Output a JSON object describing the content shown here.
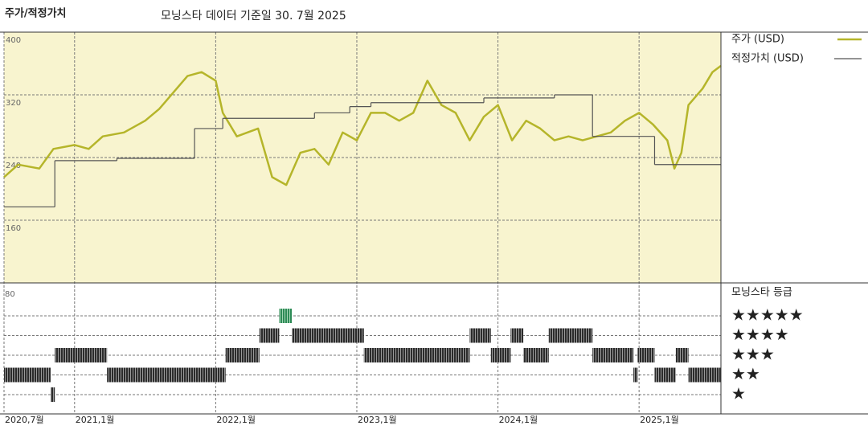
{
  "title": "주가/적정가치",
  "subtitle": "모닝스타 데이터 기준일 30. 7월 2025",
  "chart_data": [
    {
      "type": "line",
      "xlim": [
        2020.5,
        2025.58
      ],
      "xticks": [
        {
          "value": 2020.5,
          "label": "2020,7월"
        },
        {
          "value": 2021,
          "label": "2021,1월"
        },
        {
          "value": 2022,
          "label": "2022,1월"
        },
        {
          "value": 2023,
          "label": "2023,1월"
        },
        {
          "value": 2024,
          "label": "2024,1월"
        },
        {
          "value": 2025,
          "label": "2025,1월"
        }
      ],
      "ylim": [
        80,
        400
      ],
      "yticks": [
        160,
        240,
        320,
        400
      ],
      "grid": true,
      "series": [
        {
          "name": "주가 (USD)",
          "color": "#b5b52a",
          "x": [
            2020.5,
            2020.6,
            2020.75,
            2020.85,
            2021.0,
            2021.1,
            2021.2,
            2021.35,
            2021.5,
            2021.6,
            2021.7,
            2021.8,
            2021.9,
            2022.0,
            2022.05,
            2022.15,
            2022.3,
            2022.4,
            2022.5,
            2022.6,
            2022.7,
            2022.8,
            2022.9,
            2023.0,
            2023.1,
            2023.2,
            2023.3,
            2023.4,
            2023.5,
            2023.6,
            2023.7,
            2023.8,
            2023.9,
            2024.0,
            2024.1,
            2024.2,
            2024.3,
            2024.4,
            2024.5,
            2024.6,
            2024.7,
            2024.8,
            2024.9,
            2025.0,
            2025.1,
            2025.2,
            2025.25,
            2025.3,
            2025.35,
            2025.45,
            2025.52,
            2025.58
          ],
          "values": [
            215,
            231,
            226,
            251,
            256,
            251,
            267,
            272,
            287,
            302,
            323,
            344,
            349,
            338,
            297,
            267,
            277,
            215,
            205,
            246,
            251,
            231,
            272,
            262,
            297,
            297,
            287,
            297,
            338,
            307,
            297,
            262,
            292,
            307,
            262,
            287,
            277,
            262,
            267,
            262,
            267,
            272,
            287,
            297,
            282,
            262,
            226,
            246,
            307,
            328,
            349,
            357
          ]
        },
        {
          "name": "적정가치 (USD)",
          "color": "#555555",
          "step": "post",
          "x": [
            2020.5,
            2020.86,
            2021.3,
            2021.85,
            2022.05,
            2022.7,
            2022.95,
            2023.1,
            2023.9,
            2024.4,
            2024.67,
            2025.11
          ],
          "values": [
            177,
            236,
            239,
            277,
            290,
            297,
            305,
            310,
            316,
            320,
            267,
            231
          ]
        }
      ]
    },
    {
      "type": "range",
      "title": "모닝스타 등급",
      "corner_label": "80",
      "levels": [
        "★",
        "★★",
        "★★★",
        "★★★★",
        "★★★★★"
      ],
      "colors": {
        "default": "#2b2b2b",
        "top": "#2e8b57"
      },
      "x_start": [
        2020.5,
        2020.83,
        2020.86,
        2021.23,
        2022.07,
        2022.31,
        2022.45,
        2022.54,
        2023.05,
        2023.8,
        2023.95,
        2024.09,
        2024.18,
        2024.36,
        2024.67,
        2024.96,
        2024.99,
        2025.11,
        2025.26,
        2025.35
      ],
      "x_end": [
        2020.83,
        2020.86,
        2021.23,
        2022.07,
        2022.31,
        2022.45,
        2022.54,
        2023.05,
        2023.8,
        2023.95,
        2024.09,
        2024.18,
        2024.36,
        2024.67,
        2024.96,
        2024.99,
        2025.11,
        2025.26,
        2025.35,
        2025.58
      ],
      "values": [
        2,
        1,
        3,
        2,
        3,
        4,
        5,
        4,
        3,
        4,
        3,
        4,
        3,
        4,
        3,
        2,
        3,
        2,
        3,
        2
      ]
    }
  ]
}
